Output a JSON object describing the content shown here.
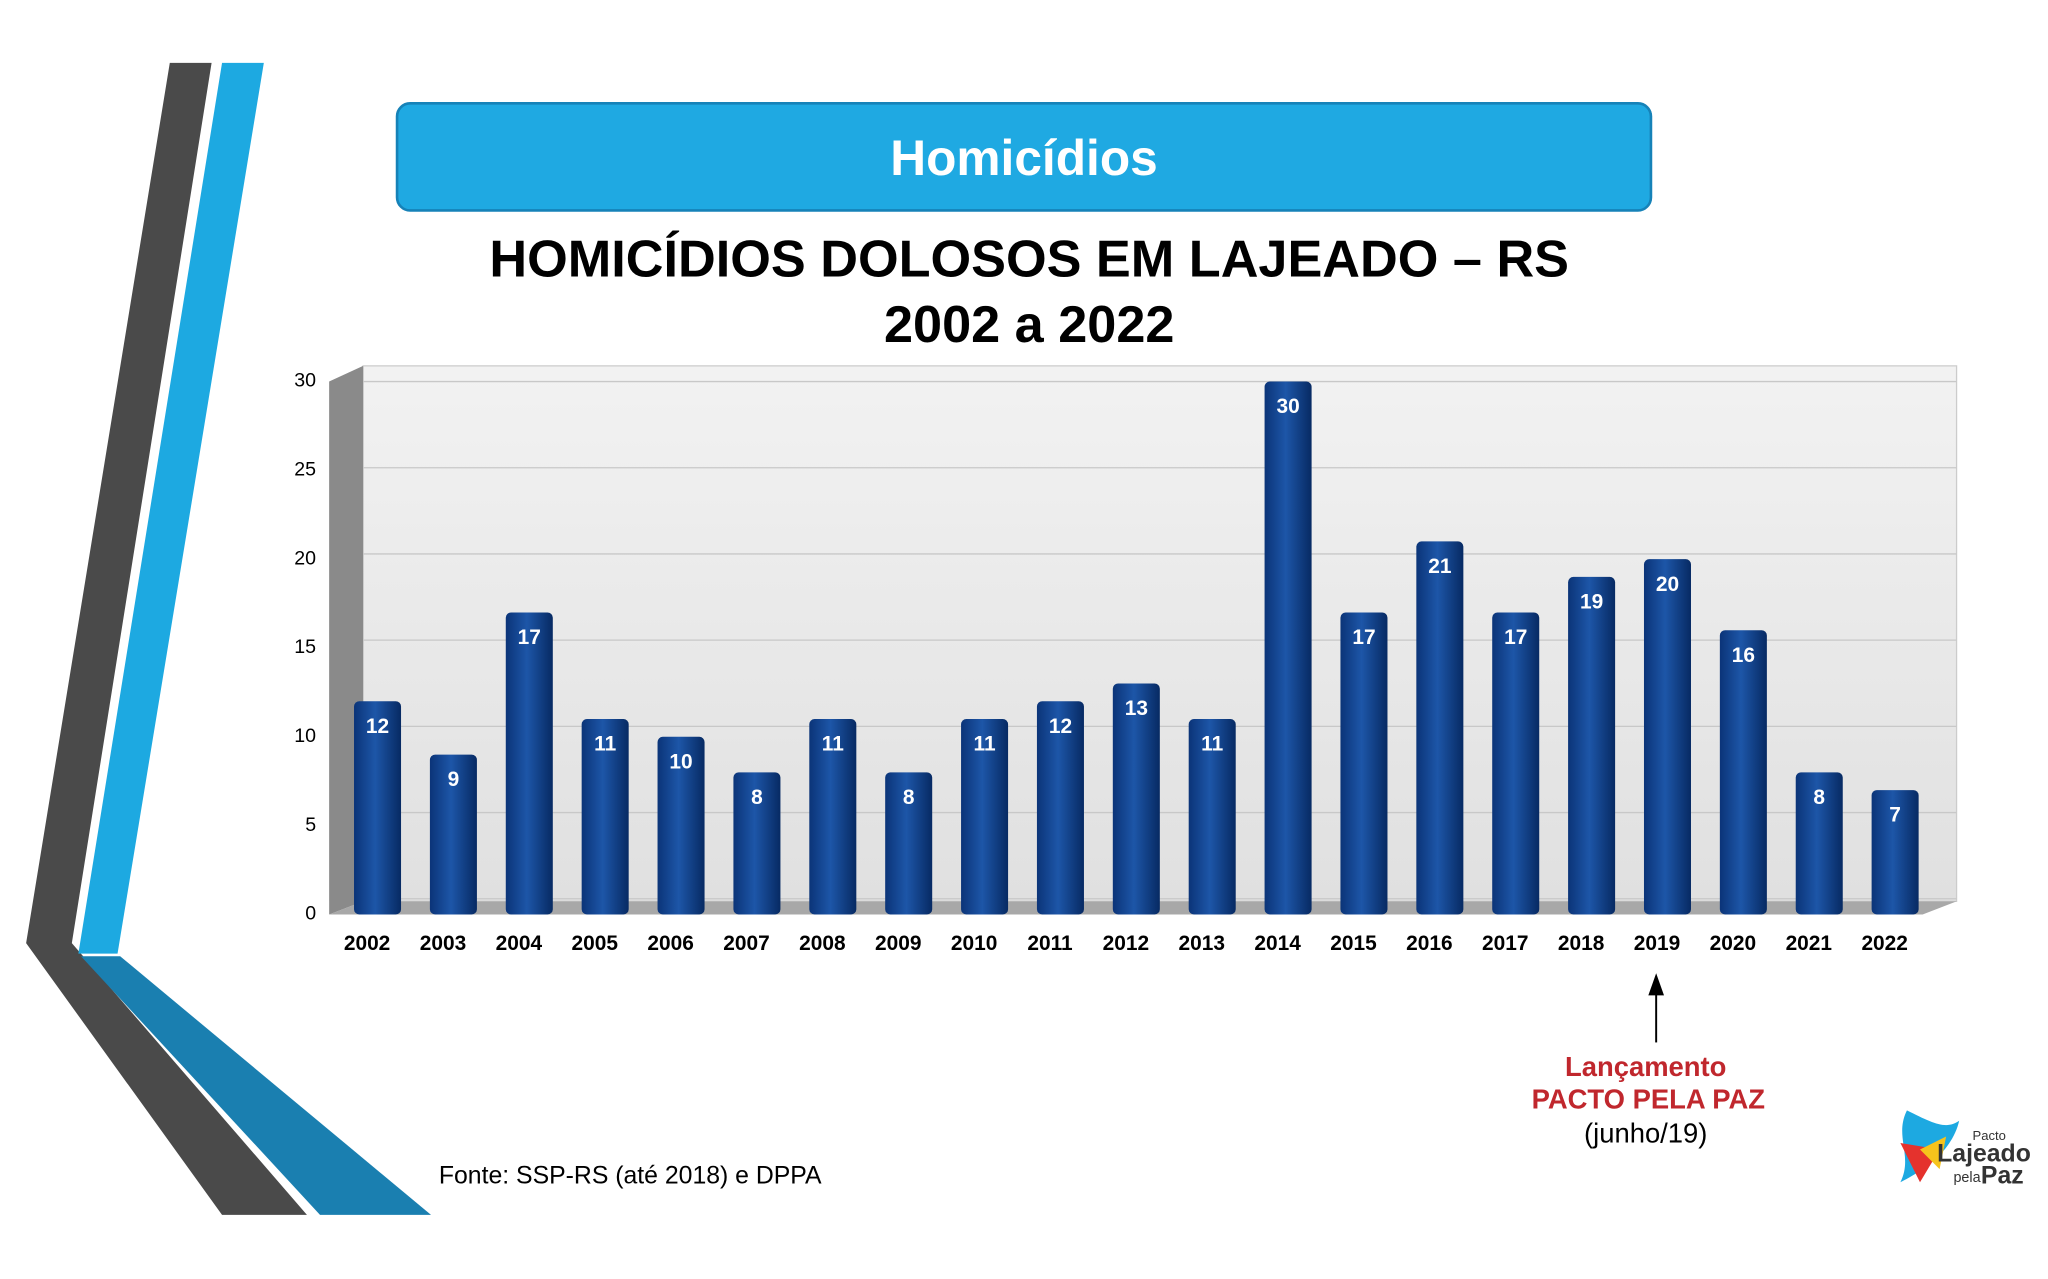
{
  "header": {
    "title": "Homicídios"
  },
  "chart_data": {
    "type": "bar",
    "title": "HOMICÍDIOS DOLOSOS EM LAJEADO – RS",
    "subtitle": "2002 a 2022",
    "categories": [
      "2002",
      "2003",
      "2004",
      "2005",
      "2006",
      "2007",
      "2008",
      "2009",
      "2010",
      "2011",
      "2012",
      "2013",
      "2014",
      "2015",
      "2016",
      "2017",
      "2018",
      "2019",
      "2020",
      "2021",
      "2022"
    ],
    "values": [
      12,
      9,
      17,
      11,
      10,
      8,
      11,
      8,
      11,
      12,
      13,
      11,
      30,
      17,
      21,
      17,
      19,
      20,
      16,
      8,
      7
    ],
    "color": "#0d3f8c",
    "ylim": [
      0,
      30
    ],
    "yticks": [
      0,
      5,
      10,
      15,
      20,
      25,
      30
    ],
    "grid": true,
    "annotations": [
      "Lançamento",
      "PACTO PELA PAZ",
      "(junho/19)"
    ],
    "source": "Fonte: SSP-RS (até 2018) e DPPA"
  },
  "logo": {
    "top": "Pacto",
    "name": "Lajeado",
    "small": "pela",
    "bottom": "Paz"
  }
}
